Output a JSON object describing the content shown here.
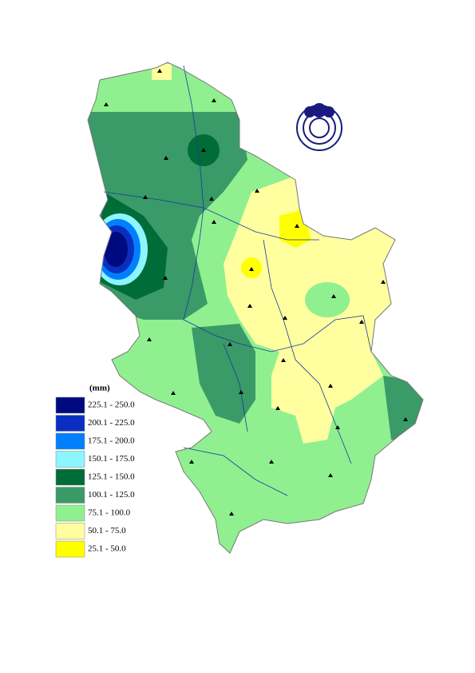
{
  "legend": {
    "unit": "(mm)",
    "items": [
      {
        "label": "225.1 - 250.0",
        "color": "#000a80"
      },
      {
        "label": "200.1 - 225.0",
        "color": "#0a2fc0"
      },
      {
        "label": "175.1 - 200.0",
        "color": "#0080ff"
      },
      {
        "label": "150.1 - 175.0",
        "color": "#8cf5ff"
      },
      {
        "label": "125.1 - 150.0",
        "color": "#006c38"
      },
      {
        "label": "100.1 - 125.0",
        "color": "#3a9a68"
      },
      {
        "label": "75.1 - 100.0",
        "color": "#90f090"
      },
      {
        "label": "50.1 - 75.0",
        "color": "#ffffa0"
      },
      {
        "label": "25.1 - 50.0",
        "color": "#ffff00"
      }
    ]
  }
}
